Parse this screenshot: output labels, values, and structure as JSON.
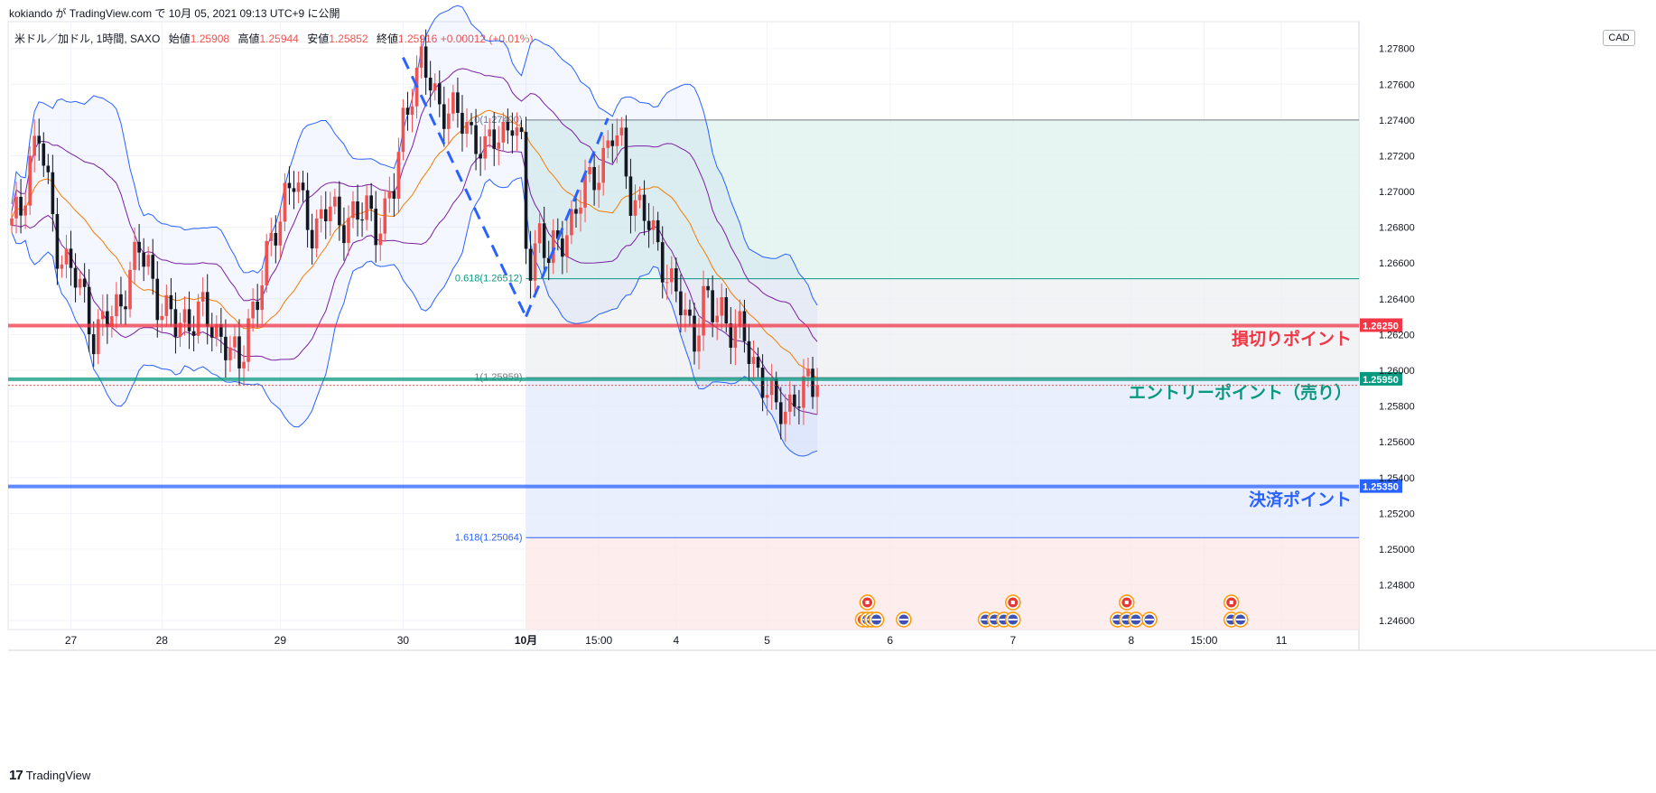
{
  "header": {
    "publish_line": "kokiando が TradingView.com で 10月 05, 2021 09:13 UTC+9 に公開"
  },
  "symbol_info": {
    "symbol": "米ドル／加ドル, 1時間, SAXO",
    "open_label": "始値",
    "open": "1.25908",
    "high_label": "高値",
    "high": "1.25944",
    "low_label": "安値",
    "low": "1.25852",
    "close_label": "終値",
    "close": "1.25916",
    "change": "+0.00012 (+0.01%)"
  },
  "currency_button": "CAD",
  "footer": {
    "logo": "17",
    "brand": "TradingView"
  },
  "chart_data": {
    "type": "candlestick",
    "symbol": "USDCAD",
    "timeframe": "1h",
    "y_axis": {
      "min": 1.2455,
      "max": 1.2795,
      "ticks": [
        "1.27800",
        "1.27600",
        "1.27400",
        "1.27200",
        "1.27000",
        "1.26800",
        "1.26600",
        "1.26400",
        "1.26200",
        "1.26000",
        "1.25800",
        "1.25600",
        "1.25400",
        "1.25200",
        "1.25000",
        "1.24800",
        "1.24600"
      ]
    },
    "x_axis": {
      "index_range": [
        0,
        179
      ],
      "labels": [
        {
          "text": "27",
          "idx": 13
        },
        {
          "text": "28",
          "idx": 33
        },
        {
          "text": "29",
          "idx": 59
        },
        {
          "text": "30",
          "idx": 86
        },
        {
          "text": "10月",
          "idx": 113,
          "bold": true
        },
        {
          "text": "15:00",
          "idx": 129
        },
        {
          "text": "4",
          "idx": 146
        },
        {
          "text": "5",
          "idx": 166
        },
        {
          "text": "6",
          "idx": 193
        },
        {
          "text": "7",
          "idx": 220
        },
        {
          "text": "8",
          "idx": 246
        },
        {
          "text": "15:00",
          "idx": 262
        },
        {
          "text": "11",
          "idx": 279
        }
      ]
    },
    "series": [
      {
        "name": "close",
        "keypoints": [
          [
            0,
            1.268
          ],
          [
            2,
            1.269
          ],
          [
            4,
            1.272
          ],
          [
            6,
            1.273
          ],
          [
            8,
            1.27
          ],
          [
            10,
            1.267
          ],
          [
            12,
            1.266
          ],
          [
            14,
            1.265
          ],
          [
            16,
            1.264
          ],
          [
            18,
            1.262
          ],
          [
            20,
            1.2625
          ],
          [
            22,
            1.263
          ],
          [
            24,
            1.264
          ],
          [
            26,
            1.2655
          ],
          [
            28,
            1.2665
          ],
          [
            30,
            1.266
          ],
          [
            32,
            1.264
          ],
          [
            34,
            1.263
          ],
          [
            36,
            1.2625
          ],
          [
            38,
            1.263
          ],
          [
            40,
            1.2628
          ],
          [
            42,
            1.2632
          ],
          [
            44,
            1.2625
          ],
          [
            46,
            1.262
          ],
          [
            48,
            1.261
          ],
          [
            50,
            1.26
          ],
          [
            52,
            1.263
          ],
          [
            54,
            1.264
          ],
          [
            56,
            1.266
          ],
          [
            58,
            1.268
          ],
          [
            60,
            1.27
          ],
          [
            62,
            1.2705
          ],
          [
            64,
            1.269
          ],
          [
            66,
            1.268
          ],
          [
            68,
            1.2685
          ],
          [
            70,
            1.269
          ],
          [
            72,
            1.2682
          ],
          [
            74,
            1.2688
          ],
          [
            76,
            1.2684
          ],
          [
            78,
            1.269
          ],
          [
            80,
            1.2682
          ],
          [
            82,
            1.2688
          ],
          [
            84,
            1.27
          ],
          [
            86,
            1.274
          ],
          [
            88,
            1.276
          ],
          [
            90,
            1.277
          ],
          [
            92,
            1.276
          ],
          [
            94,
            1.275
          ],
          [
            96,
            1.2745
          ],
          [
            98,
            1.274
          ],
          [
            100,
            1.2738
          ],
          [
            102,
            1.273
          ],
          [
            104,
            1.272
          ],
          [
            106,
            1.273
          ],
          [
            108,
            1.2735
          ],
          [
            110,
            1.274
          ],
          [
            112,
            1.272
          ],
          [
            113,
            1.267
          ],
          [
            114,
            1.266
          ],
          [
            116,
            1.268
          ],
          [
            118,
            1.266
          ],
          [
            120,
            1.267
          ],
          [
            122,
            1.268
          ],
          [
            124,
            1.269
          ],
          [
            126,
            1.27
          ],
          [
            128,
            1.271
          ],
          [
            130,
            1.272
          ],
          [
            132,
            1.273
          ],
          [
            134,
            1.2725
          ],
          [
            136,
            1.27
          ],
          [
            138,
            1.269
          ],
          [
            140,
            1.268
          ],
          [
            142,
            1.267
          ],
          [
            144,
            1.2655
          ],
          [
            146,
            1.264
          ],
          [
            148,
            1.263
          ],
          [
            150,
            1.262
          ],
          [
            152,
            1.264
          ],
          [
            154,
            1.263
          ],
          [
            156,
            1.2635
          ],
          [
            158,
            1.2625
          ],
          [
            160,
            1.262
          ],
          [
            162,
            1.261
          ],
          [
            164,
            1.26
          ],
          [
            166,
            1.259
          ],
          [
            168,
            1.2575
          ],
          [
            170,
            1.258
          ],
          [
            172,
            1.2585
          ],
          [
            174,
            1.2588
          ],
          [
            176,
            1.259
          ],
          [
            177,
            1.25916
          ]
        ]
      },
      {
        "name": "upper_band",
        "style": "blue"
      },
      {
        "name": "lower_band",
        "style": "blue"
      },
      {
        "name": "middle_ma",
        "style": "orange"
      },
      {
        "name": "inner_bands",
        "style": "purple"
      }
    ],
    "horizontal_lines": [
      {
        "price": 1.2625,
        "label": "1.26250",
        "color": "#f23645",
        "annotation": "損切りポイント"
      },
      {
        "price": 1.2595,
        "label": "1.25950",
        "color": "#089981",
        "annotation": "エントリーポイント（売り）"
      },
      {
        "price": 1.2535,
        "label": "1.25350",
        "color": "#2962ff",
        "annotation": "決済ポイント"
      }
    ],
    "fibonacci": {
      "start_idx": 113,
      "end_idx": 179,
      "levels": [
        {
          "ratio": 0,
          "price": 1.274,
          "label": "0(1.27400)"
        },
        {
          "ratio": 0.618,
          "price": 1.26512,
          "label": "0.618(1.26512)"
        },
        {
          "ratio": 1,
          "price": 1.25959,
          "label": "1(1.25959)"
        },
        {
          "ratio": 1.618,
          "price": 1.25064,
          "label": "1.618(1.25064)"
        }
      ]
    },
    "wave_lines": [
      {
        "from": [
          86,
          1.2775
        ],
        "to": [
          113,
          1.263
        ]
      },
      {
        "from": [
          113,
          1.263
        ],
        "to": [
          131,
          1.2741
        ]
      }
    ],
    "event_markers": [
      {
        "idx": 188,
        "row": 1,
        "flag": "CA"
      },
      {
        "idx": 187,
        "row": 2,
        "flag": "CA"
      },
      {
        "idx": 188,
        "row": 2,
        "flag": "US"
      },
      {
        "idx": 189,
        "row": 2,
        "flag": "US"
      },
      {
        "idx": 190,
        "row": 2,
        "flag": "US"
      },
      {
        "idx": 196,
        "row": 2,
        "flag": "US"
      },
      {
        "idx": 214,
        "row": 2,
        "flag": "US"
      },
      {
        "idx": 216,
        "row": 2,
        "flag": "US"
      },
      {
        "idx": 218,
        "row": 2,
        "flag": "US"
      },
      {
        "idx": 220,
        "row": 1,
        "flag": "CA"
      },
      {
        "idx": 220,
        "row": 2,
        "flag": "US"
      },
      {
        "idx": 243,
        "row": 2,
        "flag": "US"
      },
      {
        "idx": 245,
        "row": 1,
        "flag": "CA"
      },
      {
        "idx": 245,
        "row": 2,
        "flag": "US"
      },
      {
        "idx": 247,
        "row": 2,
        "flag": "US"
      },
      {
        "idx": 250,
        "row": 2,
        "flag": "US"
      },
      {
        "idx": 268,
        "row": 1,
        "flag": "CA"
      },
      {
        "idx": 268,
        "row": 2,
        "flag": "US"
      },
      {
        "idx": 270,
        "row": 2,
        "flag": "US"
      }
    ],
    "colors": {
      "up": "#ef5350",
      "down": "#131722",
      "grid": "#f0f3fa",
      "band_blue": "#2962ff",
      "band_purple": "#7b1fa2",
      "ma_orange": "#f57c00",
      "fib_top_fill": "#e0f2ee",
      "fib_mid_fill": "#eef0f2",
      "fib_bottom_fill": "#e3ebfb",
      "fib_ext_fill": "#fde8e7"
    }
  }
}
